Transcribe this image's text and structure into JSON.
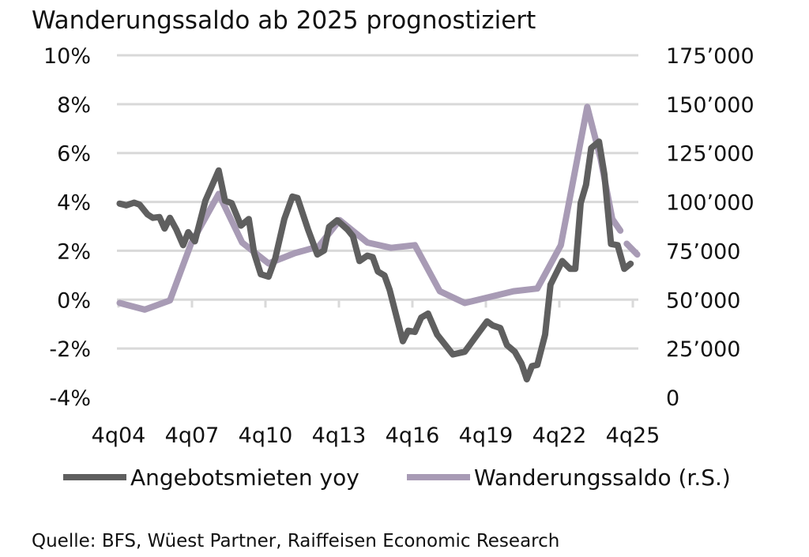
{
  "chart_data": {
    "type": "line",
    "title": "Wanderungssaldo ab 2025 prognostiziert",
    "source": "Quelle: BFS, Wüest Partner, Raiffeisen Economic Research",
    "x_tick_labels": [
      "4q04",
      "4q07",
      "4q10",
      "4q13",
      "4q16",
      "4q19",
      "4q22",
      "4q25"
    ],
    "x_ticks": [
      2004.75,
      2007.75,
      2010.75,
      2013.75,
      2016.75,
      2019.75,
      2022.75,
      2025.75
    ],
    "xlim": [
      2004.75,
      2025.75
    ],
    "y_left": {
      "ylim": [
        -4,
        10
      ],
      "ticks": [
        -4,
        -2,
        0,
        2,
        4,
        6,
        8,
        10
      ],
      "tick_labels": [
        "-4%",
        "-2%",
        "0%",
        "2%",
        "4%",
        "6%",
        "8%",
        "10%"
      ]
    },
    "y_right": {
      "ylim": [
        0,
        175000
      ],
      "ticks": [
        0,
        25000,
        50000,
        75000,
        100000,
        125000,
        150000,
        175000
      ],
      "tick_labels": [
        "0",
        "25’000",
        "50’000",
        "75’000",
        "100’000",
        "125’000",
        "150’000",
        "175’000"
      ]
    },
    "grid": true,
    "legend_position": "bottom",
    "series": [
      {
        "name": "Angebotsmieten yoy",
        "axis": "left",
        "color": "#5f5f5f",
        "points": [
          [
            2004.8,
            3.93
          ],
          [
            2005.07,
            3.86
          ],
          [
            2005.39,
            3.97
          ],
          [
            2005.61,
            3.89
          ],
          [
            2005.93,
            3.49
          ],
          [
            2006.15,
            3.35
          ],
          [
            2006.42,
            3.38
          ],
          [
            2006.63,
            2.91
          ],
          [
            2006.85,
            3.35
          ],
          [
            2007.11,
            2.87
          ],
          [
            2007.39,
            2.23
          ],
          [
            2007.6,
            2.76
          ],
          [
            2007.87,
            2.39
          ],
          [
            2008.3,
            4.05
          ],
          [
            2008.84,
            5.29
          ],
          [
            2009.1,
            4.05
          ],
          [
            2009.37,
            3.95
          ],
          [
            2009.75,
            3.03
          ],
          [
            2010.07,
            3.3
          ],
          [
            2010.29,
            1.9
          ],
          [
            2010.56,
            1.04
          ],
          [
            2010.88,
            0.94
          ],
          [
            2011.15,
            1.69
          ],
          [
            2011.52,
            3.3
          ],
          [
            2011.85,
            4.22
          ],
          [
            2012.06,
            4.16
          ],
          [
            2012.49,
            2.87
          ],
          [
            2012.87,
            1.85
          ],
          [
            2013.14,
            2.01
          ],
          [
            2013.35,
            2.98
          ],
          [
            2013.68,
            3.25
          ],
          [
            2014.1,
            2.87
          ],
          [
            2014.32,
            2.6
          ],
          [
            2014.59,
            1.58
          ],
          [
            2014.91,
            1.8
          ],
          [
            2015.13,
            1.74
          ],
          [
            2015.34,
            1.15
          ],
          [
            2015.61,
            0.99
          ],
          [
            2015.82,
            0.4
          ],
          [
            2016.36,
            -1.7
          ],
          [
            2016.58,
            -1.27
          ],
          [
            2016.85,
            -1.32
          ],
          [
            2017.11,
            -0.73
          ],
          [
            2017.39,
            -0.57
          ],
          [
            2017.76,
            -1.43
          ],
          [
            2018.4,
            -2.24
          ],
          [
            2018.89,
            -2.13
          ],
          [
            2019.48,
            -1.32
          ],
          [
            2019.8,
            -0.89
          ],
          [
            2020.02,
            -1.05
          ],
          [
            2020.34,
            -1.16
          ],
          [
            2020.61,
            -1.86
          ],
          [
            2020.93,
            -2.13
          ],
          [
            2021.2,
            -2.61
          ],
          [
            2021.42,
            -3.26
          ],
          [
            2021.63,
            -2.72
          ],
          [
            2021.85,
            -2.67
          ],
          [
            2022.17,
            -1.43
          ],
          [
            2022.39,
            0.61
          ],
          [
            2022.87,
            1.58
          ],
          [
            2023.19,
            1.26
          ],
          [
            2023.4,
            1.26
          ],
          [
            2023.62,
            3.95
          ],
          [
            2023.84,
            4.7
          ],
          [
            2024.05,
            6.2
          ],
          [
            2024.37,
            6.47
          ],
          [
            2024.59,
            5.13
          ],
          [
            2024.86,
            2.28
          ],
          [
            2025.13,
            2.23
          ],
          [
            2025.4,
            1.26
          ],
          [
            2025.66,
            1.47
          ]
        ]
      },
      {
        "name": "Wanderungssaldo (r.S.)",
        "axis": "right",
        "color": "#a89bb5",
        "points": [
          [
            2004.8,
            48300
          ],
          [
            2005.82,
            44900
          ],
          [
            2006.85,
            49600
          ],
          [
            2007.71,
            78600
          ],
          [
            2008.84,
            104100
          ],
          [
            2009.8,
            79200
          ],
          [
            2010.88,
            68500
          ],
          [
            2011.95,
            73800
          ],
          [
            2012.92,
            77200
          ],
          [
            2013.78,
            90700
          ],
          [
            2014.91,
            79200
          ],
          [
            2015.88,
            76500
          ],
          [
            2016.85,
            77900
          ],
          [
            2017.87,
            54300
          ],
          [
            2018.89,
            48300
          ],
          [
            2020.88,
            54300
          ],
          [
            2021.85,
            55700
          ],
          [
            2022.81,
            77900
          ],
          [
            2023.89,
            148600
          ],
          [
            2024.43,
            122300
          ],
          [
            2024.91,
            91300
          ],
          [
            2025.24,
            85300
          ]
        ],
        "forecast_points": [
          [
            2025.5,
            78600
          ],
          [
            2025.93,
            73100
          ]
        ]
      }
    ]
  }
}
